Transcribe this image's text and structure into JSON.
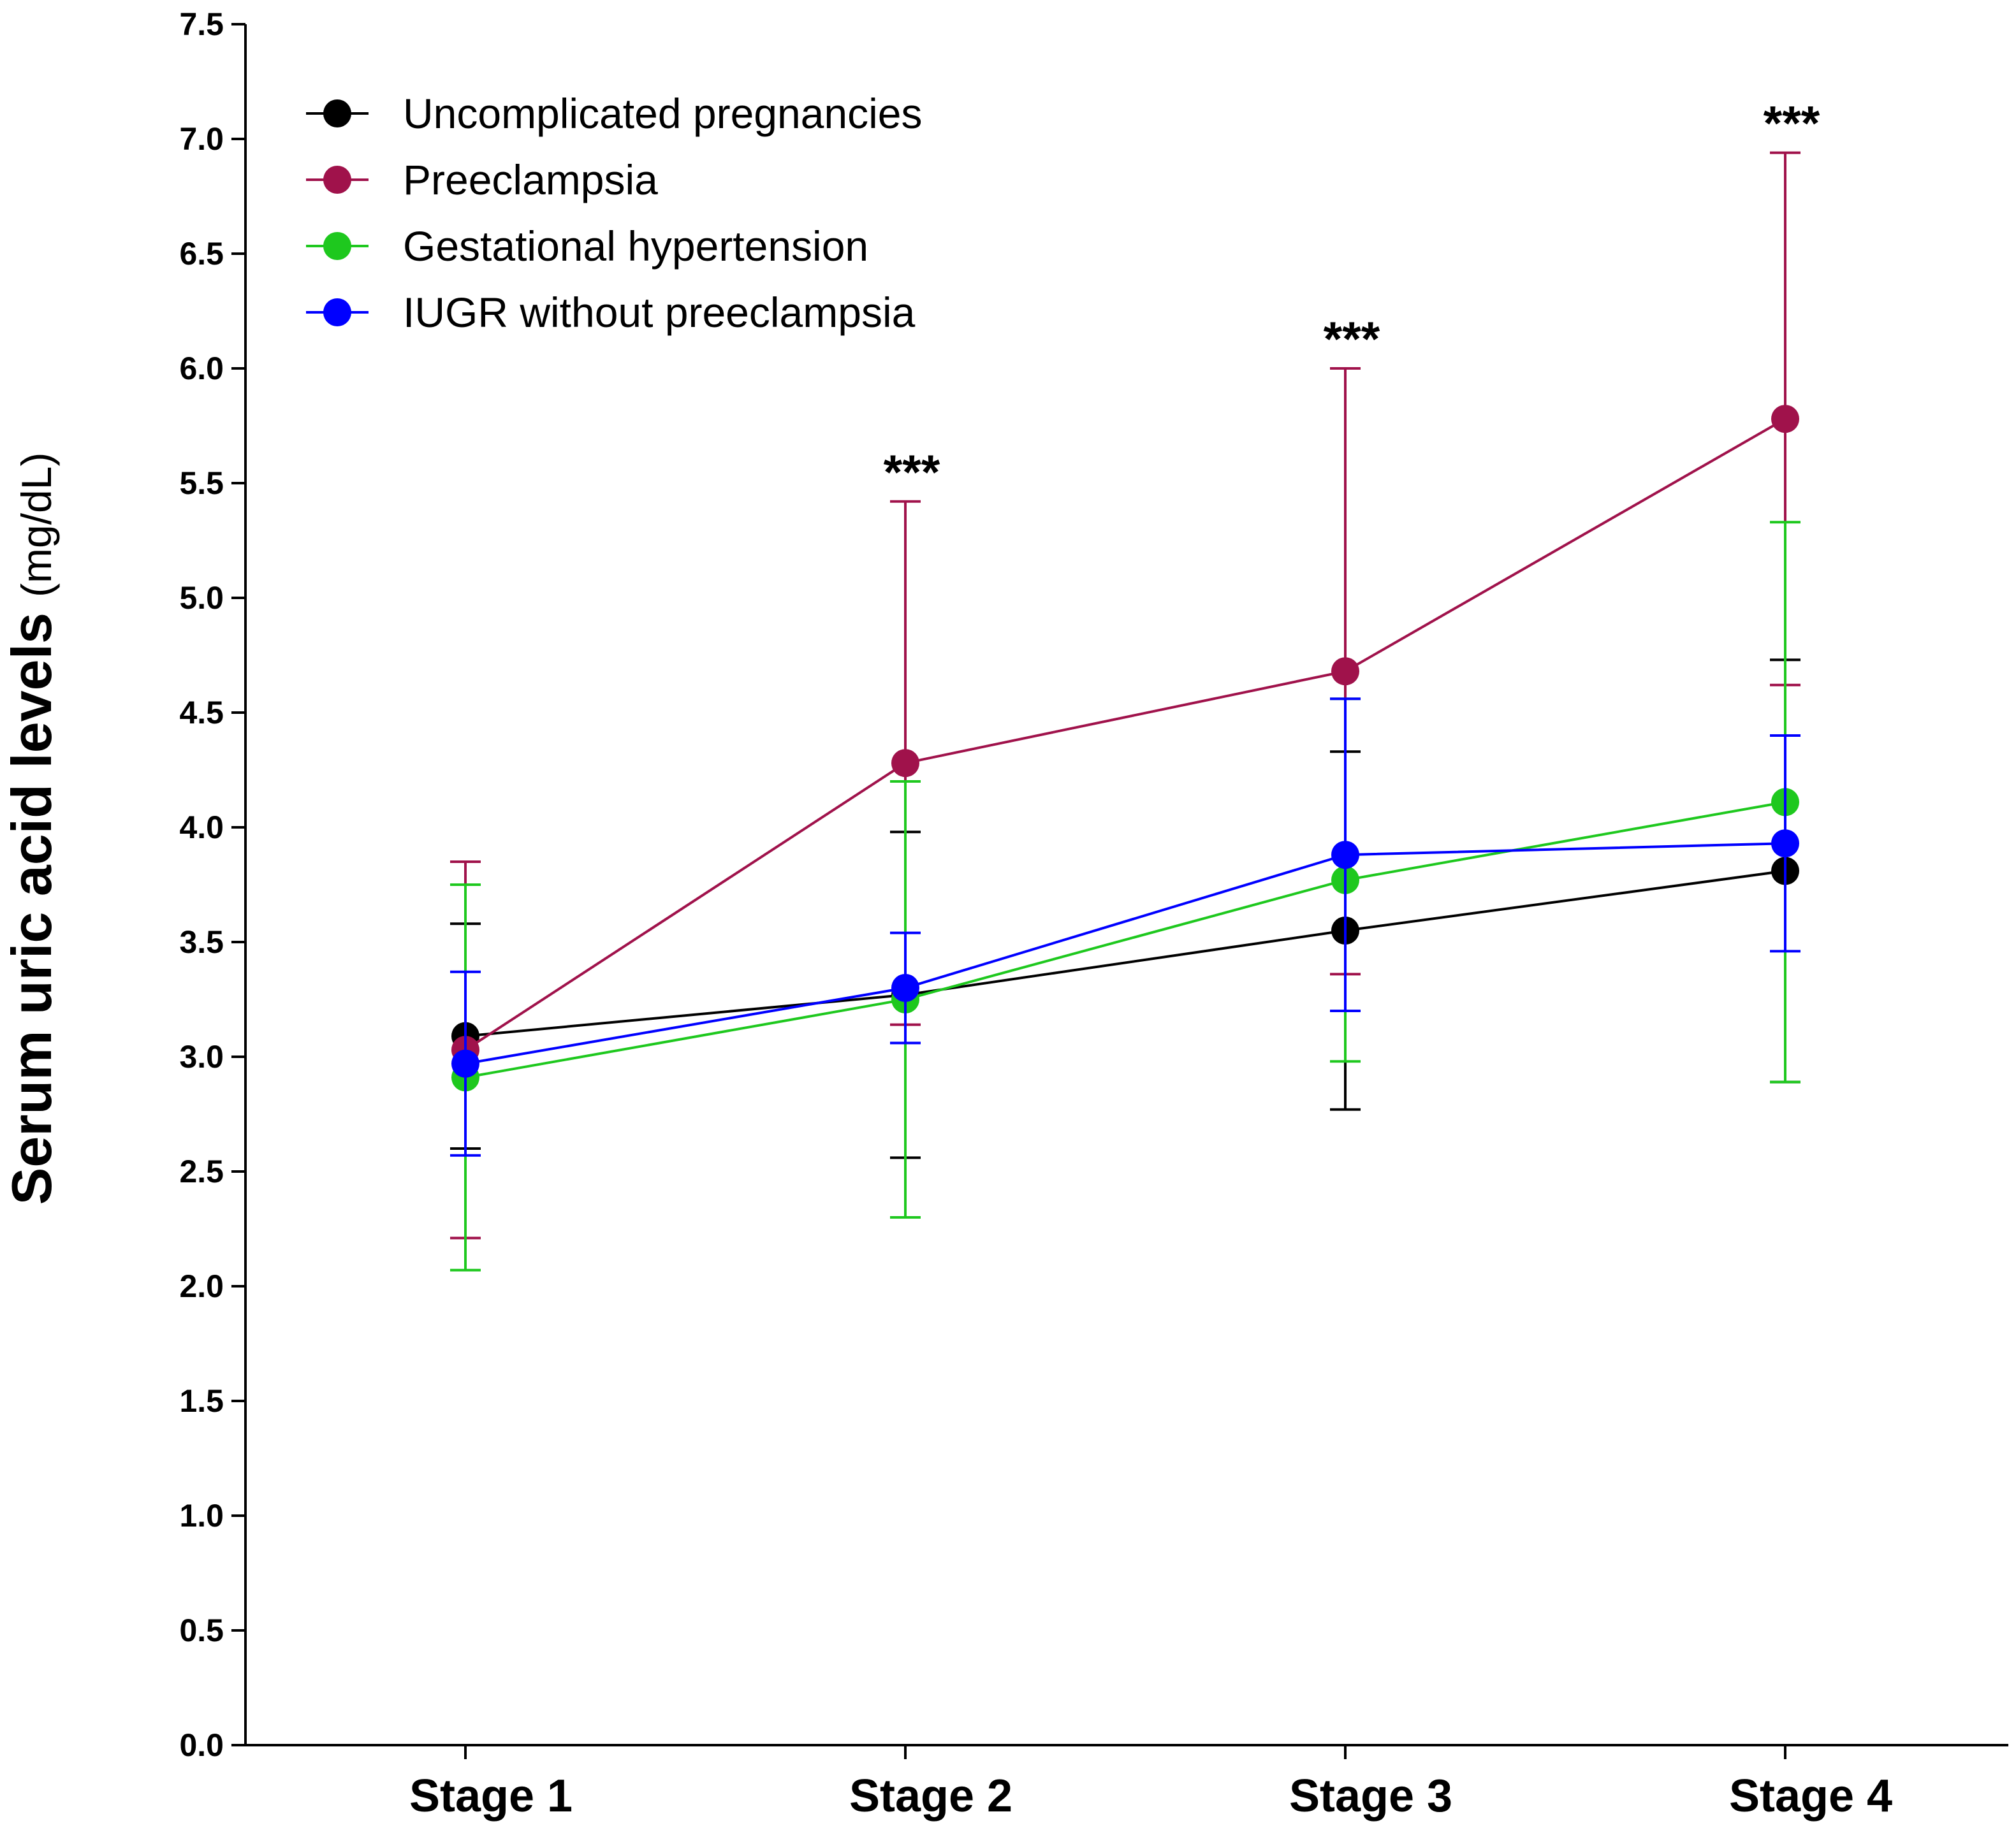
{
  "chart_data": {
    "type": "line",
    "title": "",
    "xlabel": "",
    "ylabel": "Serum uric acid levels",
    "ylabel_unit": "(mg/dL)",
    "ylim": [
      0,
      7.5
    ],
    "yticks": [
      "0.0",
      "0.5",
      "1.0",
      "1.5",
      "2.0",
      "2.5",
      "3.0",
      "3.5",
      "4.0",
      "4.5",
      "5.0",
      "5.5",
      "6.0",
      "6.5",
      "7.0",
      "7.5"
    ],
    "categories": [
      "Stage 1",
      "Stage 2",
      "Stage 3",
      "Stage 4"
    ],
    "legend_position": "top-left",
    "series": [
      {
        "name": "Uncomplicated pregnancies",
        "color": "#000000",
        "values": [
          3.09,
          3.27,
          3.55,
          3.81
        ],
        "err_high": [
          3.58,
          3.98,
          4.33,
          4.73
        ],
        "err_low": [
          2.6,
          2.56,
          2.77,
          2.89
        ]
      },
      {
        "name": "Preeclampsia",
        "color": "#a0124b",
        "values": [
          3.03,
          4.28,
          4.68,
          5.78
        ],
        "err_high": [
          3.85,
          5.42,
          6.0,
          6.94
        ],
        "err_low": [
          2.21,
          3.14,
          3.36,
          4.62
        ]
      },
      {
        "name": "Gestational hypertension",
        "color": "#1ec81e",
        "values": [
          2.91,
          3.25,
          3.77,
          4.11
        ],
        "err_high": [
          3.75,
          4.2,
          4.56,
          5.33
        ],
        "err_low": [
          2.07,
          2.3,
          2.98,
          2.89
        ]
      },
      {
        "name": "IUGR without preeclampsia",
        "color": "#0000ff",
        "values": [
          2.97,
          3.3,
          3.88,
          3.93
        ],
        "err_high": [
          3.37,
          3.54,
          4.56,
          4.4
        ],
        "err_low": [
          2.57,
          3.06,
          3.2,
          3.46
        ]
      }
    ],
    "annotations": [
      {
        "category": "Stage 2",
        "text": "***",
        "y": 5.42
      },
      {
        "category": "Stage 3",
        "text": "***",
        "y": 6.0
      },
      {
        "category": "Stage 4",
        "text": "***",
        "y": 6.94
      }
    ]
  }
}
